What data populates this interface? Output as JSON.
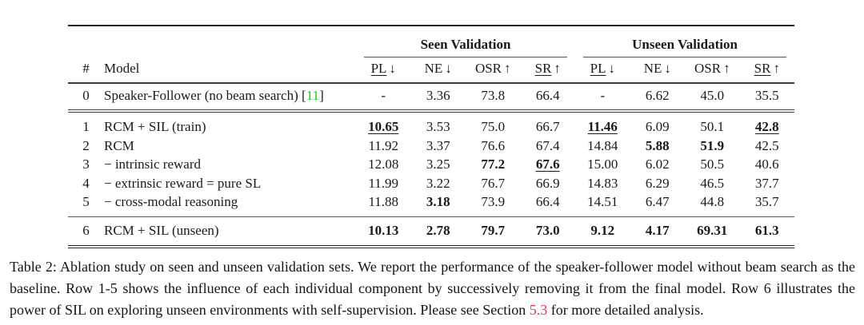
{
  "table": {
    "group_header": {
      "seen": "Seen Validation",
      "unseen": "Unseen Validation"
    },
    "columns": {
      "num": "#",
      "model": "Model",
      "metrics": [
        {
          "name": "PL",
          "arrow": "↓"
        },
        {
          "name": "NE",
          "arrow": "↓"
        },
        {
          "name": "OSR",
          "arrow": "↑"
        },
        {
          "name": "SR",
          "arrow": "↑"
        }
      ]
    },
    "rows": [
      {
        "num": "0",
        "model": "Speaker-Follower (no beam search) ",
        "cite_open": "[",
        "cite": "11",
        "cite_close": "]",
        "seen": [
          "-",
          "3.36",
          "73.8",
          "66.4"
        ],
        "unseen": [
          "-",
          "6.62",
          "45.0",
          "35.5"
        ]
      },
      {
        "num": "1",
        "model": "RCM + SIL (train)",
        "seen": [
          "10.65",
          "3.53",
          "75.0",
          "66.7"
        ],
        "unseen": [
          "11.46",
          "6.09",
          "50.1",
          "42.8"
        ]
      },
      {
        "num": "2",
        "model": "RCM",
        "seen": [
          "11.92",
          "3.37",
          "76.6",
          "67.4"
        ],
        "unseen": [
          "14.84",
          "5.88",
          "51.9",
          "42.5"
        ]
      },
      {
        "num": "3",
        "model": "− intrinsic reward",
        "seen": [
          "12.08",
          "3.25",
          "77.2",
          "67.6"
        ],
        "unseen": [
          "15.00",
          "6.02",
          "50.5",
          "40.6"
        ]
      },
      {
        "num": "4",
        "model": "− extrinsic reward = pure SL",
        "seen": [
          "11.99",
          "3.22",
          "76.7",
          "66.9"
        ],
        "unseen": [
          "14.83",
          "6.29",
          "46.5",
          "37.7"
        ]
      },
      {
        "num": "5",
        "model": "− cross-modal reasoning",
        "seen": [
          "11.88",
          "3.18",
          "73.9",
          "66.4"
        ],
        "unseen": [
          "14.51",
          "6.47",
          "44.8",
          "35.7"
        ]
      },
      {
        "num": "6",
        "model": "RCM + SIL (unseen)",
        "seen": [
          "10.13",
          "2.78",
          "79.7",
          "73.0"
        ],
        "unseen": [
          "9.12",
          "4.17",
          "69.31",
          "61.3"
        ]
      }
    ]
  },
  "caption": {
    "before_ref": "Table 2: Ablation study on seen and unseen validation sets. We report the performance of the speaker-follower model without beam search as the baseline. Row 1-5 shows the influence of each individual component by successively removing it from the final model. Row 6 illustrates the power of SIL on exploring unseen environments with self-supervision. Please see Section ",
    "ref": "5.3",
    "after_ref": " for more detailed analysis."
  },
  "colors": {
    "citation_link": "#00e000",
    "section_link": "#e8384a",
    "text": "#1a1a1a"
  }
}
